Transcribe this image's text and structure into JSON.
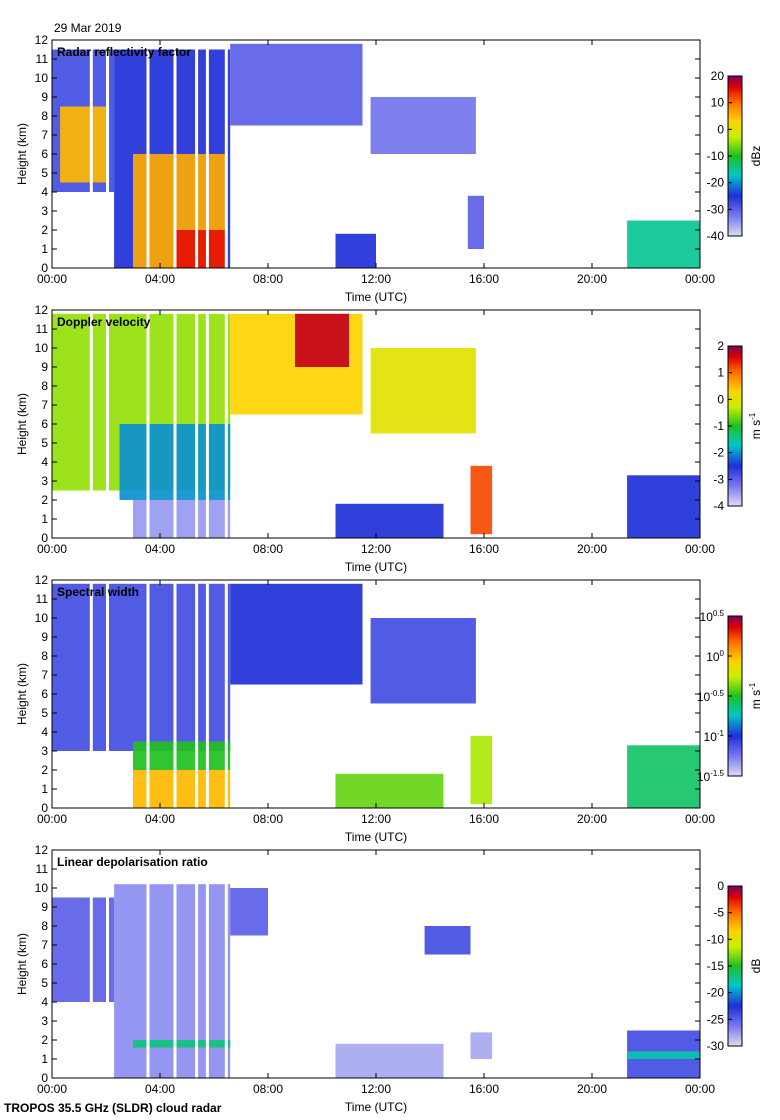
{
  "header": {
    "date": "29 Mar 2019"
  },
  "footer": {
    "instrument": "TROPOS 35.5 GHz (SLDR) cloud radar"
  },
  "chart_data": [
    {
      "type": "heatmap",
      "title": "Radar reflectivity factor",
      "xlabel": "Time (UTC)",
      "ylabel": "Height (km)",
      "xticks": [
        "00:00",
        "04:00",
        "08:00",
        "12:00",
        "16:00",
        "20:00",
        "00:00"
      ],
      "xlim": [
        0,
        24
      ],
      "ylim": [
        0,
        12
      ],
      "yticks": [
        0,
        1,
        2,
        3,
        4,
        5,
        6,
        7,
        8,
        9,
        10,
        11,
        12
      ],
      "colorbar": {
        "unit": "dBz",
        "ticks": [
          "20",
          "10",
          "0",
          "-10",
          "-20",
          "-30",
          "-40"
        ],
        "range": [
          -40,
          20
        ]
      },
      "regions": [
        {
          "t0": 0.0,
          "t1": 2.3,
          "h0": 4.0,
          "h1": 11.5,
          "level": -28
        },
        {
          "t0": 0.3,
          "t1": 2.0,
          "h0": 4.5,
          "h1": 8.5,
          "level": 5
        },
        {
          "t0": 2.3,
          "t1": 6.6,
          "h0": 0.0,
          "h1": 11.5,
          "level": -25
        },
        {
          "t0": 3.0,
          "t1": 6.5,
          "h0": 0.0,
          "h1": 6.0,
          "level": 6
        },
        {
          "t0": 4.5,
          "t1": 6.5,
          "h0": 0.0,
          "h1": 2.0,
          "level": 15
        },
        {
          "t0": 6.6,
          "t1": 11.5,
          "h0": 7.5,
          "h1": 11.8,
          "level": -30
        },
        {
          "t0": 11.8,
          "t1": 15.7,
          "h0": 6.0,
          "h1": 9.0,
          "level": -32
        },
        {
          "t0": 10.5,
          "t1": 12.0,
          "h0": 0.0,
          "h1": 1.8,
          "level": -25
        },
        {
          "t0": 15.4,
          "t1": 16.0,
          "h0": 1.0,
          "h1": 3.8,
          "level": -30
        },
        {
          "t0": 21.3,
          "t1": 24.0,
          "h0": 0.0,
          "h1": 2.5,
          "level": -15
        }
      ]
    },
    {
      "type": "heatmap",
      "title": "Doppler velocity",
      "xlabel": "Time (UTC)",
      "ylabel": "Height (km)",
      "xticks": [
        "00:00",
        "04:00",
        "08:00",
        "12:00",
        "16:00",
        "20:00",
        "00:00"
      ],
      "xlim": [
        0,
        24
      ],
      "ylim": [
        0,
        12
      ],
      "yticks": [
        0,
        1,
        2,
        3,
        4,
        5,
        6,
        7,
        8,
        9,
        10,
        11,
        12
      ],
      "colorbar": {
        "unit": "m s-1",
        "unit_main": "m s",
        "unit_sup": "-1",
        "ticks": [
          "2",
          "1",
          "0",
          "-1",
          "-2",
          "-3",
          "-4"
        ],
        "range": [
          -4,
          2
        ]
      },
      "regions": [
        {
          "t0": 0.0,
          "t1": 6.6,
          "h0": 2.5,
          "h1": 11.8,
          "level": -0.5
        },
        {
          "t0": 2.5,
          "t1": 6.6,
          "h0": 2.0,
          "h1": 6.0,
          "level": -2.0
        },
        {
          "t0": 3.0,
          "t1": 6.6,
          "h0": 0.0,
          "h1": 2.0,
          "level": -3.5
        },
        {
          "t0": 6.6,
          "t1": 11.5,
          "h0": 6.5,
          "h1": 11.8,
          "level": 0.3
        },
        {
          "t0": 9.0,
          "t1": 11.0,
          "h0": 9.0,
          "h1": 11.8,
          "level": 1.7
        },
        {
          "t0": 11.8,
          "t1": 15.7,
          "h0": 5.5,
          "h1": 10.0,
          "level": 0.0
        },
        {
          "t0": 10.5,
          "t1": 14.5,
          "h0": 0.0,
          "h1": 1.8,
          "level": -2.5
        },
        {
          "t0": 15.5,
          "t1": 16.3,
          "h0": 0.2,
          "h1": 3.8,
          "level": 1.2
        },
        {
          "t0": 21.3,
          "t1": 24.0,
          "h0": 0.0,
          "h1": 3.3,
          "level": -2.5
        }
      ]
    },
    {
      "type": "heatmap",
      "title": "Spectral width",
      "xlabel": "Time (UTC)",
      "ylabel": "Height (km)",
      "xticks": [
        "00:00",
        "04:00",
        "08:00",
        "12:00",
        "16:00",
        "20:00",
        "00:00"
      ],
      "xlim": [
        0,
        24
      ],
      "ylim": [
        0,
        12
      ],
      "yticks": [
        0,
        1,
        2,
        3,
        4,
        5,
        6,
        7,
        8,
        9,
        10,
        11,
        12
      ],
      "colorbar": {
        "unit": "m s-1",
        "unit_main": "m s",
        "unit_sup": "-1",
        "ticks": [
          {
            "base": "10",
            "exp": "0.5"
          },
          {
            "base": "10",
            "exp": "0"
          },
          {
            "base": "10",
            "exp": "-0.5"
          },
          {
            "base": "10",
            "exp": "-1"
          },
          {
            "base": "10",
            "exp": "-1.5"
          }
        ],
        "range": [
          -1.5,
          0.5
        ]
      },
      "regions": [
        {
          "t0": 0.0,
          "t1": 6.6,
          "h0": 3.0,
          "h1": 11.8,
          "level": -1.1
        },
        {
          "t0": 6.6,
          "t1": 11.5,
          "h0": 6.5,
          "h1": 11.8,
          "level": -1.0
        },
        {
          "t0": 11.8,
          "t1": 15.7,
          "h0": 5.5,
          "h1": 10.0,
          "level": -1.1
        },
        {
          "t0": 3.0,
          "t1": 6.6,
          "h0": 2.0,
          "h1": 3.5,
          "level": -0.5
        },
        {
          "t0": 3.0,
          "t1": 6.6,
          "h0": 0.0,
          "h1": 2.0,
          "level": 0.0
        },
        {
          "t0": 10.5,
          "t1": 14.5,
          "h0": 0.0,
          "h1": 1.8,
          "level": -0.4
        },
        {
          "t0": 15.5,
          "t1": 16.3,
          "h0": 0.2,
          "h1": 3.8,
          "level": -0.3
        },
        {
          "t0": 21.3,
          "t1": 24.0,
          "h0": 0.0,
          "h1": 3.3,
          "level": -0.6
        }
      ]
    },
    {
      "type": "heatmap",
      "title": "Linear depolarisation ratio",
      "xlabel": "Time (UTC)",
      "ylabel": "Height (km)",
      "xticks": [
        "00:00",
        "04:00",
        "08:00",
        "12:00",
        "16:00",
        "20:00",
        "00:00"
      ],
      "xlim": [
        0,
        24
      ],
      "ylim": [
        0,
        12
      ],
      "yticks": [
        0,
        1,
        2,
        3,
        4,
        5,
        6,
        7,
        8,
        9,
        10,
        11,
        12
      ],
      "colorbar": {
        "unit": "dB",
        "ticks": [
          "0",
          "-5",
          "-10",
          "-15",
          "-20",
          "-25",
          "-30"
        ],
        "range": [
          -30,
          0
        ]
      },
      "regions": [
        {
          "t0": 0.0,
          "t1": 2.3,
          "h0": 4.0,
          "h1": 9.5,
          "level": -25
        },
        {
          "t0": 2.3,
          "t1": 6.6,
          "h0": 0.0,
          "h1": 10.2,
          "level": -27
        },
        {
          "t0": 3.0,
          "t1": 6.6,
          "h0": 1.6,
          "h1": 2.0,
          "level": -17
        },
        {
          "t0": 6.6,
          "t1": 8.0,
          "h0": 7.5,
          "h1": 10.0,
          "level": -25
        },
        {
          "t0": 10.5,
          "t1": 14.5,
          "h0": 0.0,
          "h1": 1.8,
          "level": -28
        },
        {
          "t0": 13.8,
          "t1": 15.5,
          "h0": 6.5,
          "h1": 8.0,
          "level": -24
        },
        {
          "t0": 15.5,
          "t1": 16.3,
          "h0": 1.0,
          "h1": 2.4,
          "level": -28
        },
        {
          "t0": 21.3,
          "t1": 24.0,
          "h0": 0.0,
          "h1": 2.5,
          "level": -24
        },
        {
          "t0": 21.3,
          "t1": 24.0,
          "h0": 1.0,
          "h1": 1.4,
          "level": -18
        }
      ]
    }
  ]
}
